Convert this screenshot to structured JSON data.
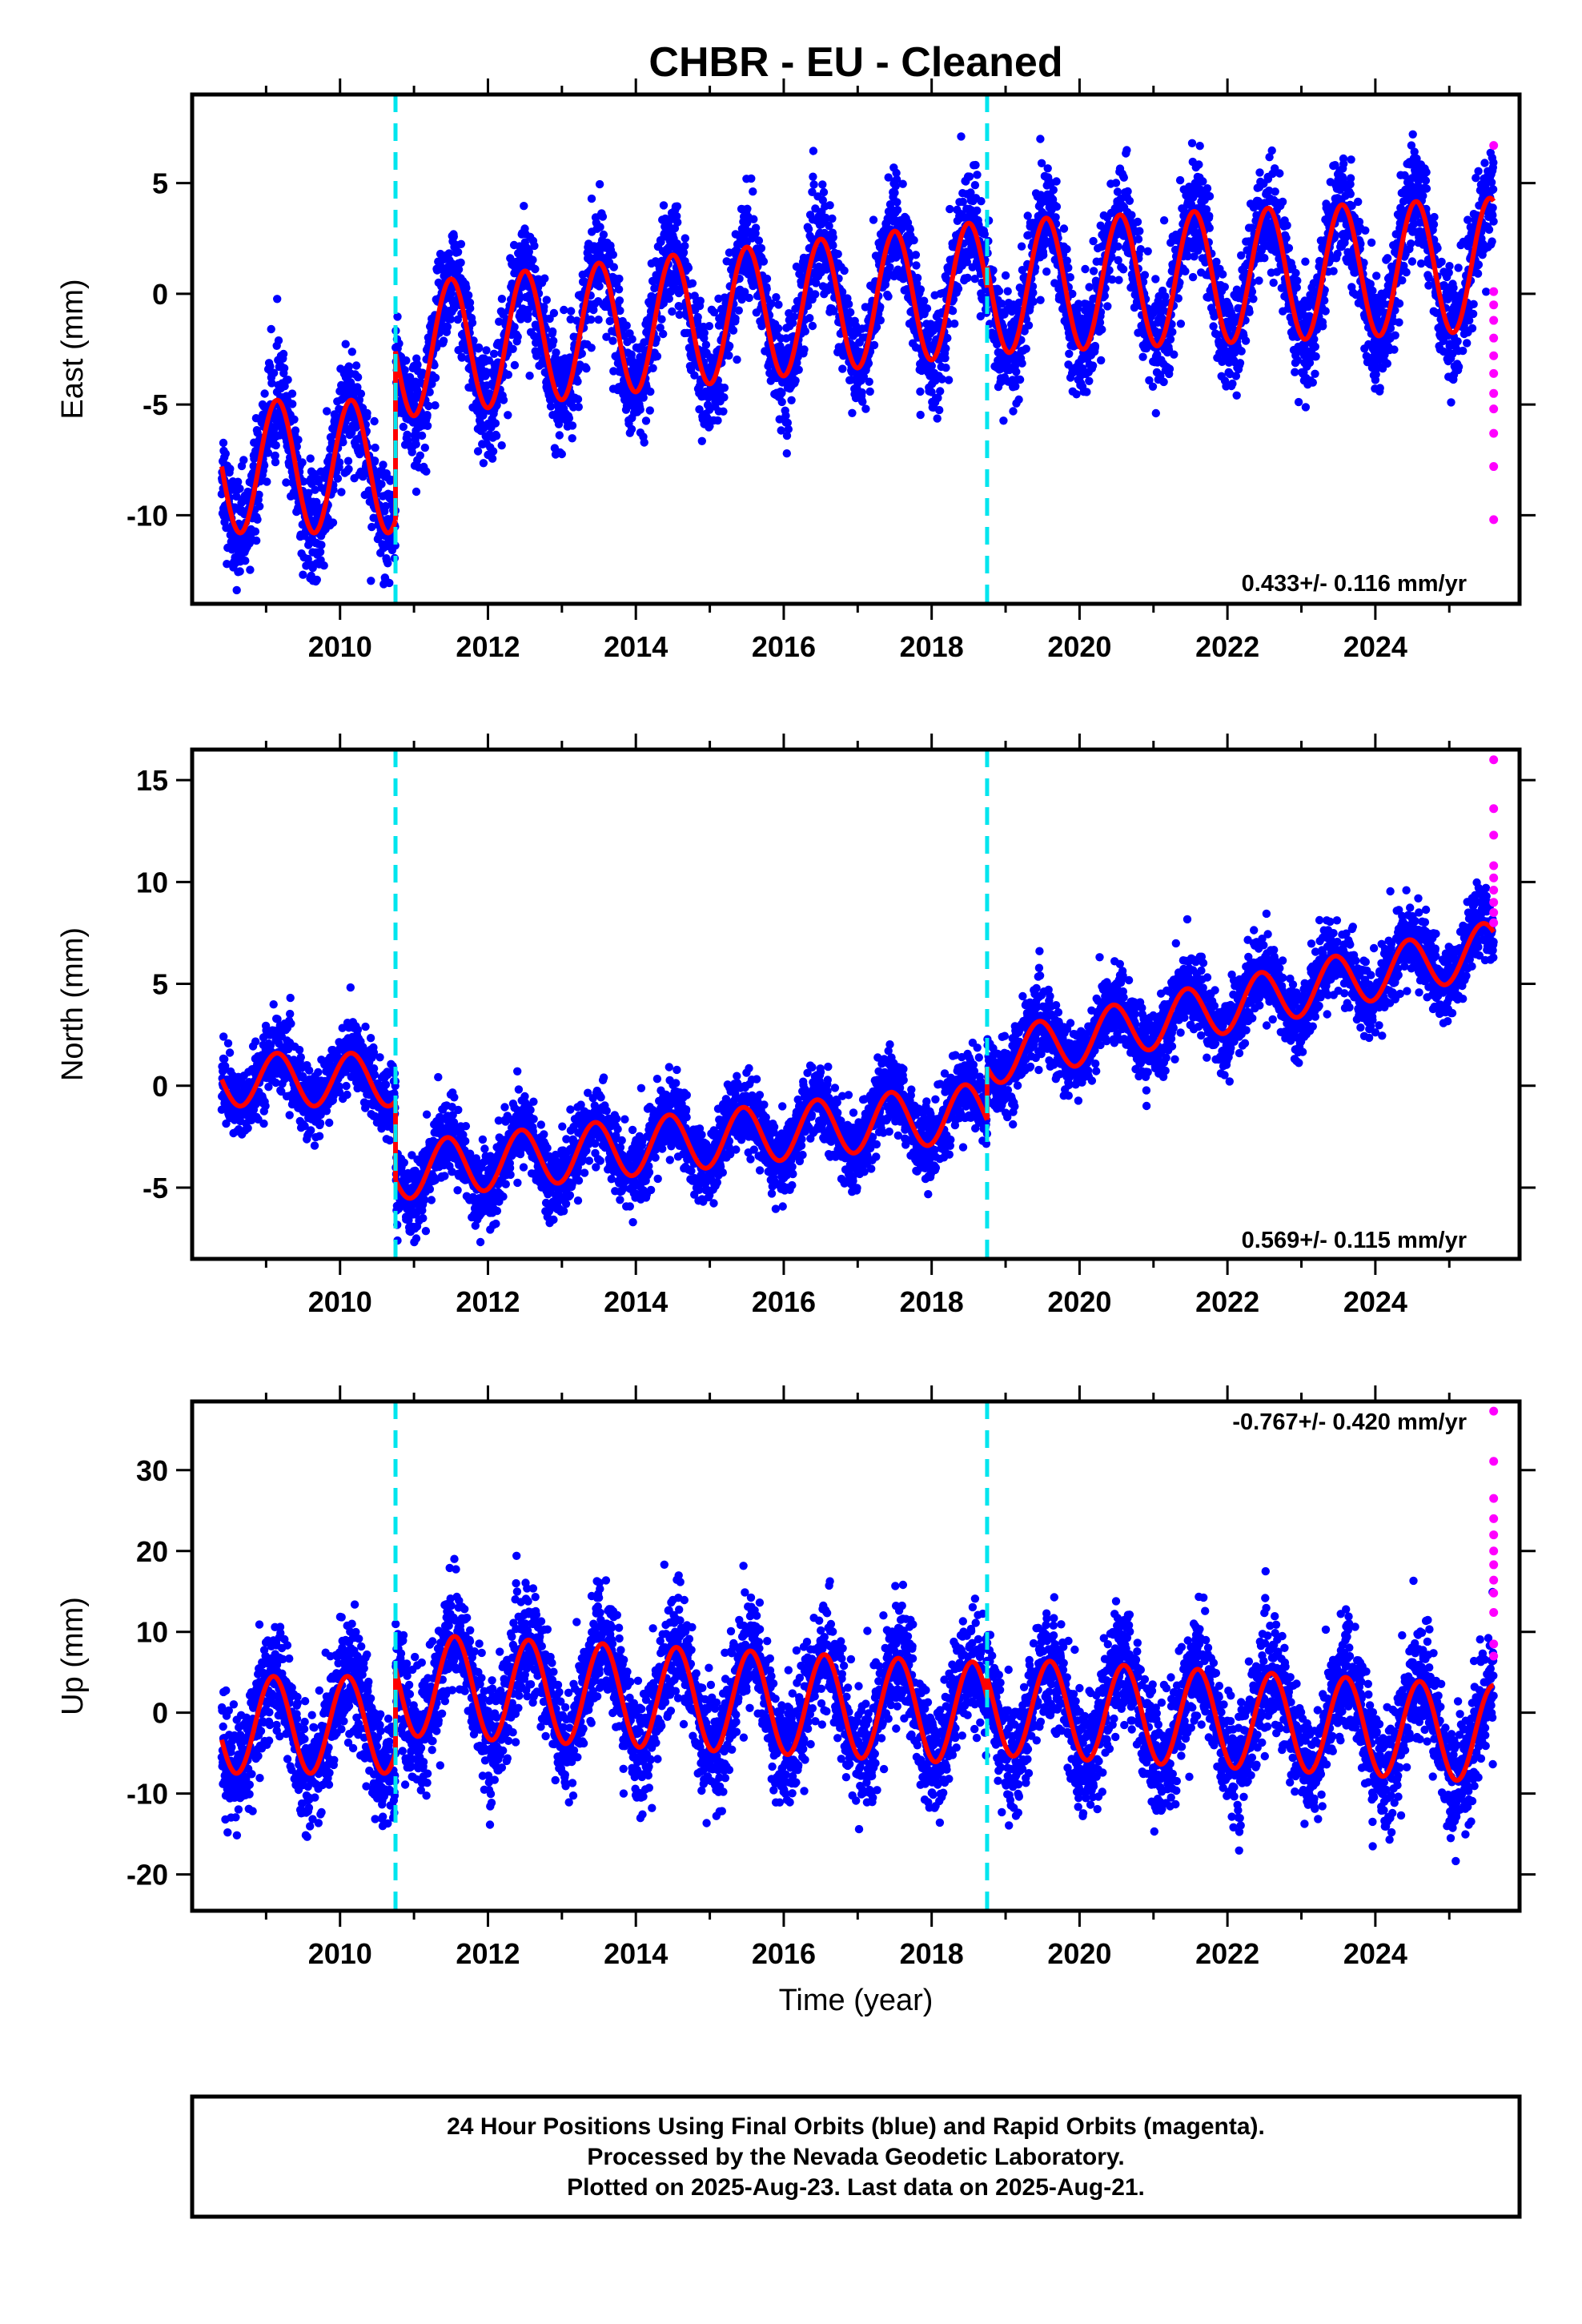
{
  "chart_data": [
    {
      "type": "scatter",
      "component": "East",
      "title": "CHBR  - EU - Cleaned",
      "ylabel": "East (mm)",
      "xlabel": "",
      "xlim": [
        2008.0,
        2025.95
      ],
      "ylim": [
        -14.0,
        9.0
      ],
      "yticks": [
        5,
        0,
        -5,
        -10
      ],
      "ytick_labels": [
        "5",
        "0",
        "-5",
        "-10"
      ],
      "xticks": [
        2010,
        2012,
        2014,
        2016,
        2018,
        2020,
        2022,
        2024
      ],
      "xtick_labels": [
        "2010",
        "2012",
        "2014",
        "2016",
        "2018",
        "2020",
        "2022",
        "2024"
      ],
      "rate_label": "0.433+/- 0.116 mm/yr",
      "breaks": [
        2010.75,
        2018.75
      ],
      "series": [
        {
          "name": "Final Orbits",
          "color": "#0000ff",
          "model": {
            "segments": [
              {
                "from": 2008.4,
                "to": 2010.75,
                "offset": -7.8,
                "trend": 0.0,
                "amp": 3.0,
                "phase": 0.9
              },
              {
                "from": 2010.75,
                "to": 2018.75,
                "offset": -2.6,
                "trend": 0.36,
                "amp": 3.0,
                "phase": 1.25
              },
              {
                "from": 2018.75,
                "to": 2025.6,
                "offset": 0.3,
                "trend": 0.15,
                "amp": 3.0,
                "phase": 1.3
              }
            ]
          },
          "scatter_sigma": 1.2
        },
        {
          "name": "Rapid Orbits",
          "color": "#ff00ff",
          "x": [
            2025.6,
            2025.6,
            2025.6,
            2025.6,
            2025.6,
            2025.6,
            2025.6,
            2025.6,
            2025.6,
            2025.6,
            2025.6,
            2025.6
          ],
          "y": [
            6.7,
            0.1,
            -0.5,
            -1.2,
            -2.0,
            -2.8,
            -3.6,
            -4.5,
            -5.2,
            -6.3,
            -7.8,
            -10.2
          ]
        },
        {
          "name": "Model fit",
          "color": "#ff0000"
        }
      ]
    },
    {
      "type": "scatter",
      "component": "North",
      "ylabel": "North (mm)",
      "xlabel": "",
      "xlim": [
        2008.0,
        2025.95
      ],
      "ylim": [
        -8.5,
        16.5
      ],
      "yticks": [
        15,
        10,
        5,
        0,
        -5
      ],
      "ytick_labels": [
        "15",
        "10",
        "5",
        "0",
        "-5"
      ],
      "xticks": [
        2010,
        2012,
        2014,
        2016,
        2018,
        2020,
        2022,
        2024
      ],
      "xtick_labels": [
        "2010",
        "2012",
        "2014",
        "2016",
        "2018",
        "2020",
        "2022",
        "2024"
      ],
      "rate_label": "0.569+/- 0.115 mm/yr",
      "breaks": [
        2010.75,
        2018.75
      ],
      "series": [
        {
          "name": "Final Orbits",
          "color": "#0000ff",
          "model": {
            "segments": [
              {
                "from": 2008.4,
                "to": 2010.75,
                "offset": 0.3,
                "trend": 0.0,
                "amp": 1.3,
                "phase": 0.9
              },
              {
                "from": 2010.75,
                "to": 2018.75,
                "offset": -4.2,
                "trend": 0.37,
                "amp": 1.4,
                "phase": 1.2
              },
              {
                "from": 2018.75,
                "to": 2025.6,
                "offset": 1.3,
                "trend": 0.8,
                "amp": 1.3,
                "phase": 1.2
              }
            ]
          },
          "scatter_sigma": 0.9
        },
        {
          "name": "Rapid Orbits",
          "color": "#ff00ff",
          "x": [
            2025.6,
            2025.6,
            2025.6,
            2025.6,
            2025.6,
            2025.6,
            2025.6,
            2025.6,
            2025.6
          ],
          "y": [
            16.0,
            13.6,
            12.3,
            10.8,
            10.2,
            9.6,
            9.0,
            8.5,
            8.0
          ]
        },
        {
          "name": "Model fit",
          "color": "#ff0000"
        }
      ]
    },
    {
      "type": "scatter",
      "component": "Up",
      "ylabel": "Up (mm)",
      "xlabel": "Time (year)",
      "xlim": [
        2008.0,
        2025.95
      ],
      "ylim": [
        -24.5,
        38.5
      ],
      "yticks": [
        30,
        20,
        10,
        0,
        -10,
        -20
      ],
      "ytick_labels": [
        "30",
        "20",
        "10",
        "0",
        "-10",
        "-20"
      ],
      "xticks": [
        2010,
        2012,
        2014,
        2016,
        2018,
        2020,
        2022,
        2024
      ],
      "xtick_labels": [
        "2010",
        "2012",
        "2014",
        "2016",
        "2018",
        "2020",
        "2022",
        "2024"
      ],
      "rate_label": "-0.767+/- 0.420 mm/yr",
      "breaks": [
        2010.75,
        2018.75
      ],
      "series": [
        {
          "name": "Final Orbits",
          "color": "#0000ff",
          "model": {
            "segments": [
              {
                "from": 2008.4,
                "to": 2010.75,
                "offset": -1.5,
                "trend": 0.0,
                "amp": 6.0,
                "phase": 0.85
              },
              {
                "from": 2010.75,
                "to": 2018.75,
                "offset": 3.5,
                "trend": -0.45,
                "amp": 6.3,
                "phase": 1.3
              },
              {
                "from": 2018.75,
                "to": 2025.6,
                "offset": 0.8,
                "trend": -0.5,
                "amp": 6.0,
                "phase": 1.35
              }
            ]
          },
          "scatter_sigma": 3.5
        },
        {
          "name": "Rapid Orbits",
          "color": "#ff00ff",
          "x": [
            2025.6,
            2025.6,
            2025.6,
            2025.6,
            2025.6,
            2025.6,
            2025.6,
            2025.6,
            2025.6,
            2025.6,
            2025.6,
            2025.6
          ],
          "y": [
            37.3,
            31.1,
            26.5,
            24.0,
            22.0,
            20.0,
            18.3,
            16.4,
            14.8,
            12.4,
            8.5,
            7.0
          ]
        },
        {
          "name": "Model fit",
          "color": "#ff0000"
        }
      ]
    }
  ],
  "footer": {
    "line1": "24 Hour Positions Using Final Orbits (blue) and Rapid Orbits (magenta).",
    "line2": "Processed by the Nevada Geodetic Laboratory.",
    "line3": "Plotted on 2025-Aug-23. Last data on 2025-Aug-21."
  }
}
